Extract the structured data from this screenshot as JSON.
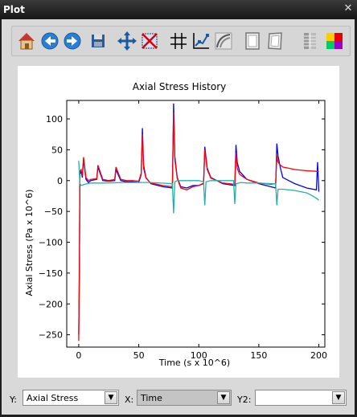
{
  "window": {
    "title": "Plot",
    "close_glyph": "✕"
  },
  "toolbar": {
    "items": [
      {
        "name": "home-icon",
        "tooltip": "Reset original view"
      },
      {
        "name": "back-icon",
        "tooltip": "Back to previous view"
      },
      {
        "name": "forward-icon",
        "tooltip": "Forward to next view"
      },
      {
        "name": "save-icon",
        "tooltip": "Save the figure"
      },
      {
        "name": "pan-icon",
        "tooltip": "Pan axes"
      },
      {
        "name": "zoom-rect-icon",
        "tooltip": "Zoom to rectangle"
      },
      {
        "name": "grid-icon",
        "tooltip": "Toggle grid"
      },
      {
        "name": "line-style-icon",
        "tooltip": "Line style"
      },
      {
        "name": "curve-icon",
        "tooltip": "Curves"
      },
      {
        "name": "frame-icon",
        "tooltip": "Frame"
      },
      {
        "name": "page-icon",
        "tooltip": "Page"
      },
      {
        "name": "colorbar-icon",
        "tooltip": "Colorbar"
      },
      {
        "name": "colormap-icon",
        "tooltip": "Colormap"
      }
    ]
  },
  "chart_data": {
    "type": "line",
    "title": "Axial Stress   History",
    "xlabel": "Time  (s x 10^6)",
    "ylabel": "Axial Stress  (Pa x 10^6)",
    "xlim": [
      -10,
      205
    ],
    "ylim": [
      -270,
      130
    ],
    "xticks": [
      0,
      50,
      100,
      150,
      200
    ],
    "yticks": [
      100,
      50,
      0,
      -50,
      -100,
      -150,
      -200,
      -250
    ],
    "grid": false,
    "series": [
      {
        "color": "#0000ff",
        "x": [
          0,
          0.5,
          1,
          2,
          3,
          4,
          6,
          8,
          10,
          15,
          16,
          20,
          25,
          30,
          31,
          35,
          40,
          45,
          50,
          52,
          53,
          54,
          56,
          60,
          70,
          78,
          79,
          80,
          82,
          85,
          90,
          95,
          100,
          104,
          105,
          107,
          110,
          120,
          130,
          131,
          132,
          134,
          140,
          150,
          160,
          164,
          165,
          166,
          168,
          170,
          175,
          180,
          190,
          198,
          199,
          200
        ],
        "y": [
          -250,
          -150,
          10,
          15,
          5,
          35,
          2,
          -3,
          0,
          2,
          22,
          0,
          -1,
          0,
          18,
          0,
          -2,
          -2,
          -3,
          10,
          85,
          25,
          5,
          -5,
          -10,
          -12,
          125,
          40,
          5,
          -10,
          -12,
          -8,
          -8,
          -5,
          55,
          20,
          5,
          -5,
          -8,
          58,
          30,
          15,
          2,
          -5,
          -10,
          -12,
          60,
          40,
          20,
          5,
          0,
          -5,
          -12,
          -15,
          30,
          -18
        ]
      },
      {
        "color": "#ff0000",
        "x": [
          0,
          0.5,
          1,
          2,
          3,
          4,
          6,
          8,
          10,
          15,
          16,
          20,
          25,
          30,
          31,
          35,
          40,
          45,
          50,
          52,
          53,
          54,
          56,
          60,
          70,
          78,
          79,
          80,
          82,
          85,
          90,
          95,
          100,
          104,
          105,
          107,
          110,
          120,
          130,
          131,
          132,
          134,
          140,
          150,
          160,
          164,
          165,
          166,
          168,
          170,
          175,
          180,
          190,
          199,
          200
        ],
        "y": [
          -260,
          -140,
          15,
          18,
          8,
          38,
          5,
          0,
          2,
          3,
          25,
          2,
          0,
          2,
          22,
          2,
          0,
          0,
          -1,
          12,
          75,
          20,
          4,
          -4,
          -8,
          -10,
          110,
          35,
          4,
          -12,
          -15,
          -10,
          -8,
          -4,
          50,
          18,
          4,
          -4,
          -6,
          45,
          20,
          10,
          2,
          -4,
          -6,
          -5,
          40,
          30,
          25,
          22,
          20,
          18,
          16,
          15,
          14
        ]
      },
      {
        "color": "#20b2aa",
        "x": [
          0,
          1,
          2,
          5,
          10,
          20,
          40,
          60,
          78,
          79,
          80,
          82,
          90,
          100,
          104,
          105,
          106,
          110,
          120,
          129,
          130,
          131,
          135,
          140,
          150,
          160,
          164,
          165,
          166,
          170,
          180,
          190,
          195,
          199,
          200
        ],
        "y": [
          32,
          -5,
          -8,
          -6,
          -4,
          -4,
          -3,
          -3,
          -5,
          -53,
          -2,
          0,
          0,
          0,
          -2,
          -40,
          -2,
          0,
          0,
          0,
          -38,
          -5,
          -3,
          -4,
          -4,
          -5,
          -5,
          -40,
          -14,
          -14,
          -16,
          -20,
          -25,
          -30,
          -32
        ]
      }
    ]
  },
  "selectors": {
    "y": {
      "label": "Y:",
      "value": "Axial Stress"
    },
    "x": {
      "label": "X:",
      "value": "Time"
    },
    "y2": {
      "label": "Y2:",
      "value": ""
    },
    "arrow_glyph": "▼"
  }
}
